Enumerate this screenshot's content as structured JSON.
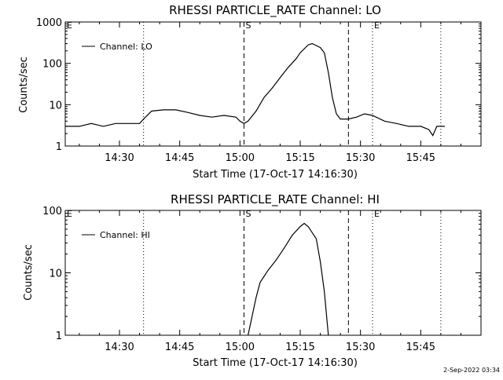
{
  "footer": "2-Sep-2022 03:34",
  "chart_data": [
    {
      "type": "line",
      "title": "RHESSI PARTICLE_RATE Channel: LO",
      "xlabel": "Start Time (17-Oct-17 14:16:30)",
      "ylabel": "Counts/sec",
      "yscale": "log",
      "ylim": [
        1,
        1000
      ],
      "xlim": [
        "14:16:30",
        "16:00:00"
      ],
      "xticks": [
        "14:30",
        "14:45",
        "15:00",
        "15:15",
        "15:30",
        "15:45"
      ],
      "yticks": [
        "1",
        "10",
        "100",
        "1000"
      ],
      "legend": {
        "placement": "top-left",
        "entries": [
          "Channel: LO"
        ]
      },
      "markers": [
        {
          "time": "14:16:30",
          "style": "dotted",
          "label": "E"
        },
        {
          "time": "14:36:00",
          "style": "dotted",
          "label": ""
        },
        {
          "time": "15:01:00",
          "style": "dashed",
          "label": "S"
        },
        {
          "time": "15:27:00",
          "style": "dashed",
          "label": ""
        },
        {
          "time": "15:33:00",
          "style": "dotted",
          "label": "E"
        },
        {
          "time": "15:50:00",
          "style": "dotted",
          "label": ""
        }
      ],
      "series": [
        {
          "name": "Channel: LO",
          "points": [
            [
              "14:16:30",
              3
            ],
            [
              "14:20:00",
              3
            ],
            [
              "14:23:00",
              3.5
            ],
            [
              "14:26:00",
              3
            ],
            [
              "14:29:00",
              3.5
            ],
            [
              "14:32:00",
              3.5
            ],
            [
              "14:35:00",
              3.5
            ],
            [
              "14:36:00",
              4.5
            ],
            [
              "14:38:00",
              7
            ],
            [
              "14:41:00",
              7.5
            ],
            [
              "14:44:00",
              7.5
            ],
            [
              "14:47:00",
              6.5
            ],
            [
              "14:50:00",
              5.5
            ],
            [
              "14:53:00",
              5
            ],
            [
              "14:56:00",
              5.5
            ],
            [
              "14:59:00",
              5
            ],
            [
              "15:00:00",
              4
            ],
            [
              "15:01:00",
              3.5
            ],
            [
              "15:02:00",
              4
            ],
            [
              "15:04:00",
              7
            ],
            [
              "15:06:00",
              15
            ],
            [
              "15:08:00",
              25
            ],
            [
              "15:10:00",
              45
            ],
            [
              "15:12:00",
              80
            ],
            [
              "15:14:00",
              130
            ],
            [
              "15:15:00",
              180
            ],
            [
              "15:17:00",
              280
            ],
            [
              "15:18:00",
              300
            ],
            [
              "15:20:00",
              240
            ],
            [
              "15:21:00",
              180
            ],
            [
              "15:22:00",
              60
            ],
            [
              "15:23:00",
              15
            ],
            [
              "15:24:00",
              6
            ],
            [
              "15:25:00",
              4.5
            ],
            [
              "15:27:00",
              4.5
            ],
            [
              "15:29:00",
              5
            ],
            [
              "15:31:00",
              6
            ],
            [
              "15:33:00",
              5.5
            ],
            [
              "15:36:00",
              4
            ],
            [
              "15:39:00",
              3.5
            ],
            [
              "15:42:00",
              3
            ],
            [
              "15:45:00",
              3
            ],
            [
              "15:47:00",
              2.5
            ],
            [
              "15:48:00",
              1.8
            ],
            [
              "15:49:00",
              3
            ],
            [
              "15:51:00",
              3
            ]
          ]
        }
      ]
    },
    {
      "type": "line",
      "title": "RHESSI PARTICLE_RATE Channel: HI",
      "xlabel": "Start Time (17-Oct-17 14:16:30)",
      "ylabel": "Counts/sec",
      "yscale": "log",
      "ylim": [
        1,
        100
      ],
      "xlim": [
        "14:16:30",
        "16:00:00"
      ],
      "xticks": [
        "14:30",
        "14:45",
        "15:00",
        "15:15",
        "15:30",
        "15:45"
      ],
      "yticks": [
        "1",
        "10",
        "100"
      ],
      "legend": {
        "placement": "top-left",
        "entries": [
          "Channel: HI"
        ]
      },
      "markers": [
        {
          "time": "14:16:30",
          "style": "dotted",
          "label": "E"
        },
        {
          "time": "14:36:00",
          "style": "dotted",
          "label": ""
        },
        {
          "time": "15:01:00",
          "style": "dashed",
          "label": "S"
        },
        {
          "time": "15:27:00",
          "style": "dashed",
          "label": ""
        },
        {
          "time": "15:33:00",
          "style": "dotted",
          "label": "E"
        },
        {
          "time": "15:50:00",
          "style": "dotted",
          "label": ""
        }
      ],
      "series": [
        {
          "name": "Channel: HI",
          "points": [
            [
              "15:02:00",
              1
            ],
            [
              "15:03:00",
              2
            ],
            [
              "15:04:00",
              4
            ],
            [
              "15:05:00",
              7
            ],
            [
              "15:07:00",
              11
            ],
            [
              "15:09:00",
              16
            ],
            [
              "15:11:00",
              25
            ],
            [
              "15:13:00",
              40
            ],
            [
              "15:15:00",
              55
            ],
            [
              "15:16:00",
              62
            ],
            [
              "15:17:00",
              55
            ],
            [
              "15:19:00",
              35
            ],
            [
              "15:20:00",
              15
            ],
            [
              "15:21:00",
              5
            ],
            [
              "15:22:00",
              1
            ]
          ]
        }
      ]
    }
  ]
}
